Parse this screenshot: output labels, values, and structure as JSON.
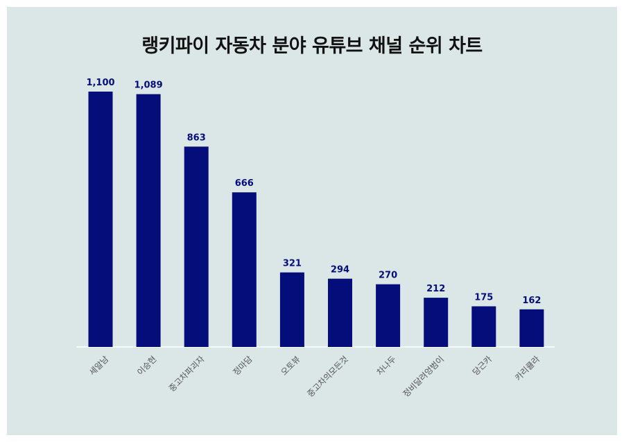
{
  "chart_data": {
    "type": "bar",
    "title": "랭키파이 자동차 분야 유튜브 채널 순위 차트",
    "categories": [
      "세알남",
      "이승현",
      "중고차파괴자",
      "정마담",
      "오토뷰",
      "중고차의모든것",
      "차나두",
      "정비달려엉범이",
      "당근카",
      "카리큘라"
    ],
    "values": [
      1100,
      1089,
      863,
      666,
      321,
      294,
      270,
      212,
      175,
      162
    ],
    "value_labels": [
      "1,100",
      "1,089",
      "863",
      "666",
      "321",
      "294",
      "270",
      "212",
      "175",
      "162"
    ],
    "xlabel": "",
    "ylabel": "",
    "ylim": [
      0,
      1100
    ],
    "grid": false,
    "bar_color": "#050d7b",
    "label_color": "#050d7b",
    "tick_color": "#555555",
    "background": "#dbe6e7"
  }
}
